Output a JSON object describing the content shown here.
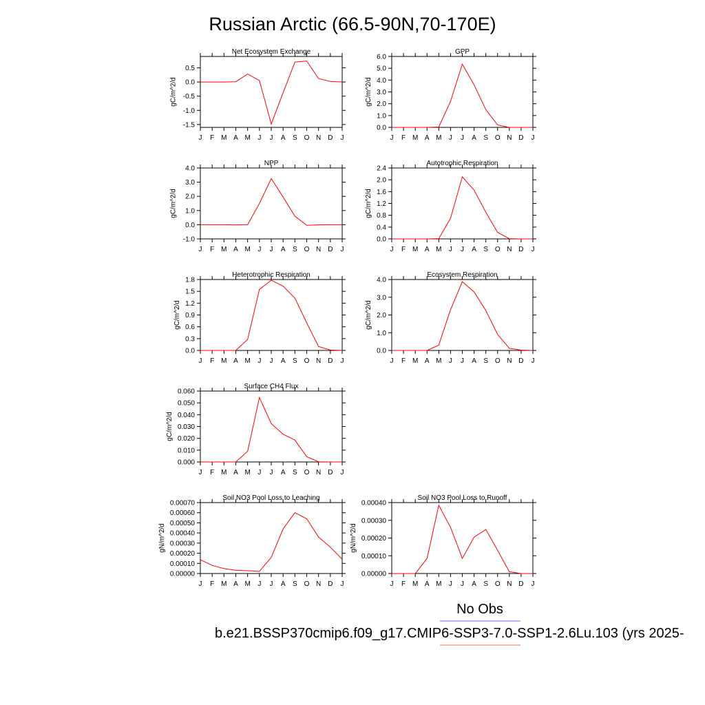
{
  "figure": {
    "title": "Russian Arctic (66.5-90N,70-170E)",
    "legend": [
      {
        "label": "No Obs",
        "color": "#6a6aff"
      },
      {
        "label": "b.e21.BSSP370cmip6.f09_g17.CMIP6-SSP3-7.0-SSP1-2.6Lu.103 (yrs 2025-",
        "color": "#ff6a6a"
      }
    ]
  },
  "chart_data": [
    {
      "type": "line",
      "title": "Net Ecosystem Exchange",
      "ylabel": "gC/m^2/d",
      "categories": [
        "J",
        "F",
        "M",
        "A",
        "M",
        "J",
        "J",
        "A",
        "S",
        "O",
        "N",
        "D",
        "J"
      ],
      "ylim": [
        -1.6,
        0.9
      ],
      "yticks": [
        0.5,
        0.0,
        -0.5,
        -1.0,
        -1.5
      ],
      "ytick_labels": [
        "0.5",
        "0.0",
        "-0.5",
        "-1.0",
        "-1.5"
      ],
      "series": [
        {
          "values": [
            0.0,
            0.0,
            0.0,
            0.01,
            0.28,
            0.05,
            -1.48,
            -0.38,
            0.7,
            0.74,
            0.12,
            0.02,
            0.0
          ],
          "color": "#ff0000"
        }
      ]
    },
    {
      "type": "line",
      "title": "GPP",
      "ylabel": "gC/m^2/d",
      "categories": [
        "J",
        "F",
        "M",
        "A",
        "M",
        "J",
        "J",
        "A",
        "S",
        "O",
        "N",
        "D",
        "J"
      ],
      "ylim": [
        0.0,
        6.0
      ],
      "yticks": [
        0,
        1,
        2,
        3,
        4,
        5,
        6
      ],
      "ytick_labels": [
        "0.0",
        "1.0",
        "2.0",
        "3.0",
        "4.0",
        "5.0",
        "6.0"
      ],
      "series": [
        {
          "values": [
            0.0,
            0.0,
            0.0,
            0.0,
            0.03,
            2.2,
            5.35,
            3.6,
            1.5,
            0.2,
            0.0,
            0.0,
            0.0
          ],
          "color": "#ff0000"
        }
      ]
    },
    {
      "type": "line",
      "title": "NPP",
      "ylabel": "gC/m^2/d",
      "categories": [
        "J",
        "F",
        "M",
        "A",
        "M",
        "J",
        "J",
        "A",
        "S",
        "O",
        "N",
        "D",
        "J"
      ],
      "ylim": [
        -1.0,
        4.0
      ],
      "yticks": [
        -1,
        0,
        1,
        2,
        3,
        4
      ],
      "ytick_labels": [
        "-1.0",
        "0.0",
        "1.0",
        "2.0",
        "3.0",
        "4.0"
      ],
      "series": [
        {
          "values": [
            0.0,
            0.0,
            0.0,
            -0.01,
            0.01,
            1.5,
            3.25,
            1.95,
            0.6,
            -0.04,
            -0.01,
            0.0,
            0.0
          ],
          "color": "#ff0000"
        }
      ]
    },
    {
      "type": "line",
      "title": "Autotrophic Respiration",
      "ylabel": "gC/m^2/d",
      "categories": [
        "J",
        "F",
        "M",
        "A",
        "M",
        "J",
        "J",
        "A",
        "S",
        "O",
        "N",
        "D",
        "J"
      ],
      "ylim": [
        0.0,
        2.4
      ],
      "yticks": [
        0.0,
        0.4,
        0.8,
        1.2,
        1.6,
        2.0,
        2.4
      ],
      "ytick_labels": [
        "0.0",
        "0.4",
        "0.8",
        "1.2",
        "1.6",
        "2.0",
        "2.4"
      ],
      "series": [
        {
          "values": [
            0.0,
            0.0,
            0.0,
            0.0,
            0.01,
            0.7,
            2.1,
            1.65,
            0.9,
            0.22,
            0.01,
            0.0,
            0.0
          ],
          "color": "#ff0000"
        }
      ]
    },
    {
      "type": "line",
      "title": "Heterotrophic Respiration",
      "ylabel": "gC/m^2/d",
      "categories": [
        "J",
        "F",
        "M",
        "A",
        "M",
        "J",
        "J",
        "A",
        "S",
        "O",
        "N",
        "D",
        "J"
      ],
      "ylim": [
        0.0,
        1.8
      ],
      "yticks": [
        0.0,
        0.3,
        0.6,
        0.9,
        1.2,
        1.5,
        1.8
      ],
      "ytick_labels": [
        "0.0",
        "0.3",
        "0.6",
        "0.9",
        "1.2",
        "1.5",
        "1.8"
      ],
      "series": [
        {
          "values": [
            0.0,
            0.0,
            0.0,
            0.0,
            0.28,
            1.55,
            1.78,
            1.63,
            1.33,
            0.7,
            0.1,
            0.01,
            0.0
          ],
          "color": "#ff0000"
        }
      ]
    },
    {
      "type": "line",
      "title": "Ecosystem Respiration",
      "ylabel": "gC/m^2/d",
      "categories": [
        "J",
        "F",
        "M",
        "A",
        "M",
        "J",
        "J",
        "A",
        "S",
        "O",
        "N",
        "D",
        "J"
      ],
      "ylim": [
        0.0,
        4.0
      ],
      "yticks": [
        0.0,
        1.0,
        2.0,
        3.0,
        4.0
      ],
      "ytick_labels": [
        "0.0",
        "1.0",
        "2.0",
        "3.0",
        "4.0"
      ],
      "series": [
        {
          "values": [
            0.0,
            0.0,
            0.0,
            0.0,
            0.3,
            2.3,
            3.88,
            3.3,
            2.25,
            0.9,
            0.12,
            0.02,
            0.0
          ],
          "color": "#ff0000"
        }
      ]
    },
    {
      "type": "line",
      "title": "Surface CH4 Flux",
      "ylabel": "gC/m^2/d",
      "categories": [
        "J",
        "F",
        "M",
        "A",
        "M",
        "J",
        "J",
        "A",
        "S",
        "O",
        "N",
        "D",
        "J"
      ],
      "ylim": [
        0.0,
        0.06
      ],
      "yticks": [
        0.0,
        0.01,
        0.02,
        0.03,
        0.04,
        0.05,
        0.06
      ],
      "ytick_labels": [
        "0.000",
        "0.010",
        "0.020",
        "0.030",
        "0.040",
        "0.050",
        "0.060"
      ],
      "series": [
        {
          "values": [
            0.0,
            0.0,
            0.0,
            0.0,
            0.009,
            0.0545,
            0.0325,
            0.0235,
            0.0185,
            0.0045,
            0.0002,
            0.0,
            0.0
          ],
          "color": "#ff0000"
        }
      ]
    },
    {
      "type": "line",
      "title": "Soil NO3 Pool Loss to Leaching",
      "ylabel": "gN/m^2/d",
      "categories": [
        "J",
        "F",
        "M",
        "A",
        "M",
        "J",
        "J",
        "A",
        "S",
        "O",
        "N",
        "D",
        "J"
      ],
      "ylim": [
        0.0,
        0.0007
      ],
      "yticks": [
        0.0,
        0.0001,
        0.0002,
        0.0003,
        0.0004,
        0.0005,
        0.0006,
        0.0007
      ],
      "ytick_labels": [
        "0.00000",
        "0.00010",
        "0.00020",
        "0.00030",
        "0.00040",
        "0.00050",
        "0.00060",
        "0.00070"
      ],
      "series": [
        {
          "values": [
            0.000135,
            8e-05,
            4.8e-05,
            3.2e-05,
            2.7e-05,
            2.1e-05,
            0.00016,
            0.00044,
            0.0006,
            0.00054,
            0.00036,
            0.00026,
            0.00014
          ],
          "color": "#ff0000"
        }
      ]
    },
    {
      "type": "line",
      "title": "Soil NO3 Pool Loss to Runoff",
      "ylabel": "gN/m^2/d",
      "categories": [
        "J",
        "F",
        "M",
        "A",
        "M",
        "J",
        "J",
        "A",
        "S",
        "O",
        "N",
        "D",
        "J"
      ],
      "ylim": [
        0.0,
        0.0004
      ],
      "yticks": [
        0.0,
        0.0001,
        0.0002,
        0.0003,
        0.0004
      ],
      "ytick_labels": [
        "0.00000",
        "0.00010",
        "0.00020",
        "0.00030",
        "0.00040"
      ],
      "series": [
        {
          "values": [
            0.0,
            0.0,
            0.0,
            8.5e-05,
            0.000385,
            0.00026,
            8.5e-05,
            0.000205,
            0.000248,
            0.00013,
            1e-05,
            0.0,
            0.0
          ],
          "color": "#ff0000"
        }
      ]
    }
  ]
}
